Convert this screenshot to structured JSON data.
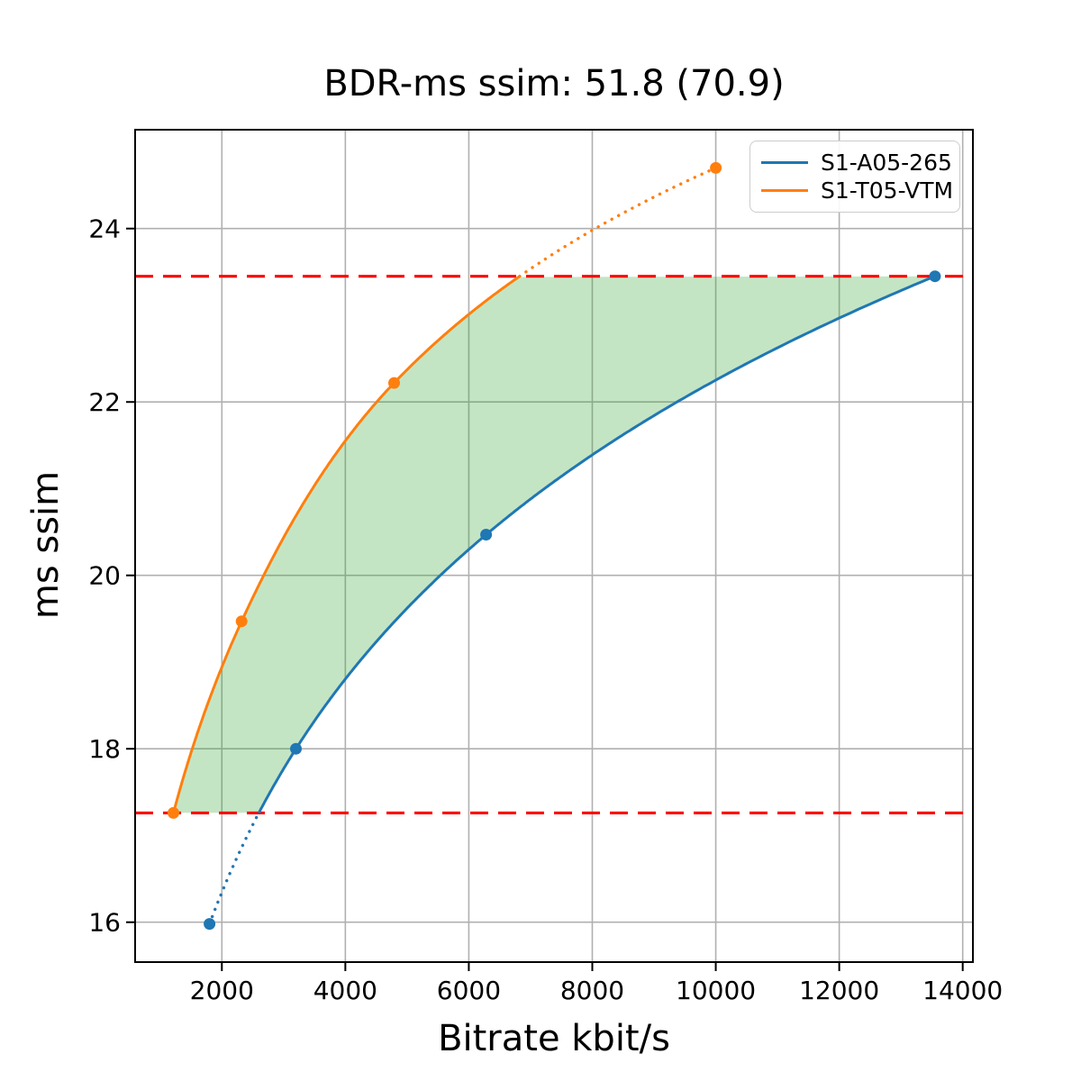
{
  "chart_data": {
    "type": "line",
    "title": "BDR-ms ssim: 51.8 (70.9)",
    "xlabel": "Bitrate kbit/s",
    "ylabel": "ms ssim",
    "xlim": [
      595,
      14165
    ],
    "ylim": [
      15.54,
      25.14
    ],
    "xticks": [
      2000,
      4000,
      6000,
      8000,
      10000,
      12000,
      14000
    ],
    "yticks": [
      16,
      18,
      20,
      22,
      24
    ],
    "grid": true,
    "legend_position": "upper right",
    "series": [
      {
        "name": "S1-A05-265",
        "color": "#1f77b4",
        "points": [
          [
            1800,
            15.98
          ],
          [
            3200,
            18.0
          ],
          [
            6280,
            20.47
          ],
          [
            13550,
            23.45
          ]
        ]
      },
      {
        "name": "S1-T05-VTM",
        "color": "#ff7f0e",
        "points": [
          [
            1215,
            17.26
          ],
          [
            2320,
            19.47
          ],
          [
            4790,
            22.22
          ],
          [
            10000,
            24.7
          ]
        ]
      }
    ],
    "reference_lines": {
      "orientation": "horizontal",
      "values": [
        17.26,
        23.45
      ],
      "color": "#ff0000",
      "style": "dashed"
    },
    "shaded_region": {
      "color": "#2ca02c",
      "alpha": 0.28,
      "between_curves": [
        "S1-T05-VTM",
        "S1-A05-265"
      ],
      "y_range": [
        17.26,
        23.45
      ]
    }
  },
  "colors": {
    "grid": "#b0b0b0",
    "axes": "#000000",
    "background": "#ffffff",
    "legend_border": "#cccccc"
  }
}
